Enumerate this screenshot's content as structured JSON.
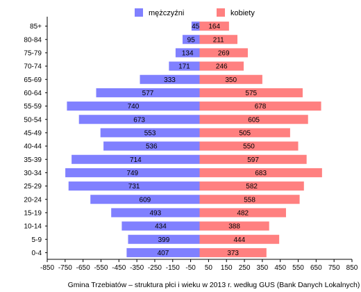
{
  "chart_data": {
    "type": "bar",
    "orientation": "horizontal-population-pyramid",
    "caption": "Gmina Trzebiatów – struktura płci i wieku w 2013 r. według GUS (Bank Danych Lokalnych)",
    "categories": [
      "85+",
      "80-84",
      "75-79",
      "70-74",
      "65-69",
      "60-64",
      "55-59",
      "50-54",
      "45-49",
      "40-44",
      "35-39",
      "30-34",
      "25-29",
      "20-24",
      "15-19",
      "10-14",
      "5-9",
      "0-4"
    ],
    "series": [
      {
        "name": "mężczyźni",
        "color": "#8080ff",
        "side": "left",
        "values": [
          45,
          95,
          134,
          171,
          333,
          577,
          740,
          673,
          553,
          536,
          714,
          749,
          731,
          609,
          493,
          434,
          399,
          407
        ]
      },
      {
        "name": "kobiety",
        "color": "#ff8080",
        "side": "right",
        "values": [
          164,
          211,
          269,
          246,
          350,
          575,
          678,
          605,
          505,
          550,
          597,
          683,
          582,
          558,
          482,
          388,
          444,
          373
        ]
      }
    ],
    "xlim": [
      -850,
      850
    ],
    "xtick_labels": [
      "-850",
      "-750",
      "-650",
      "-550",
      "-450",
      "-350",
      "-250",
      "-150",
      "-50",
      "50",
      "150",
      "250",
      "350",
      "450",
      "550",
      "650",
      "750",
      "850"
    ],
    "legend_position": "top-center",
    "grid": false
  }
}
